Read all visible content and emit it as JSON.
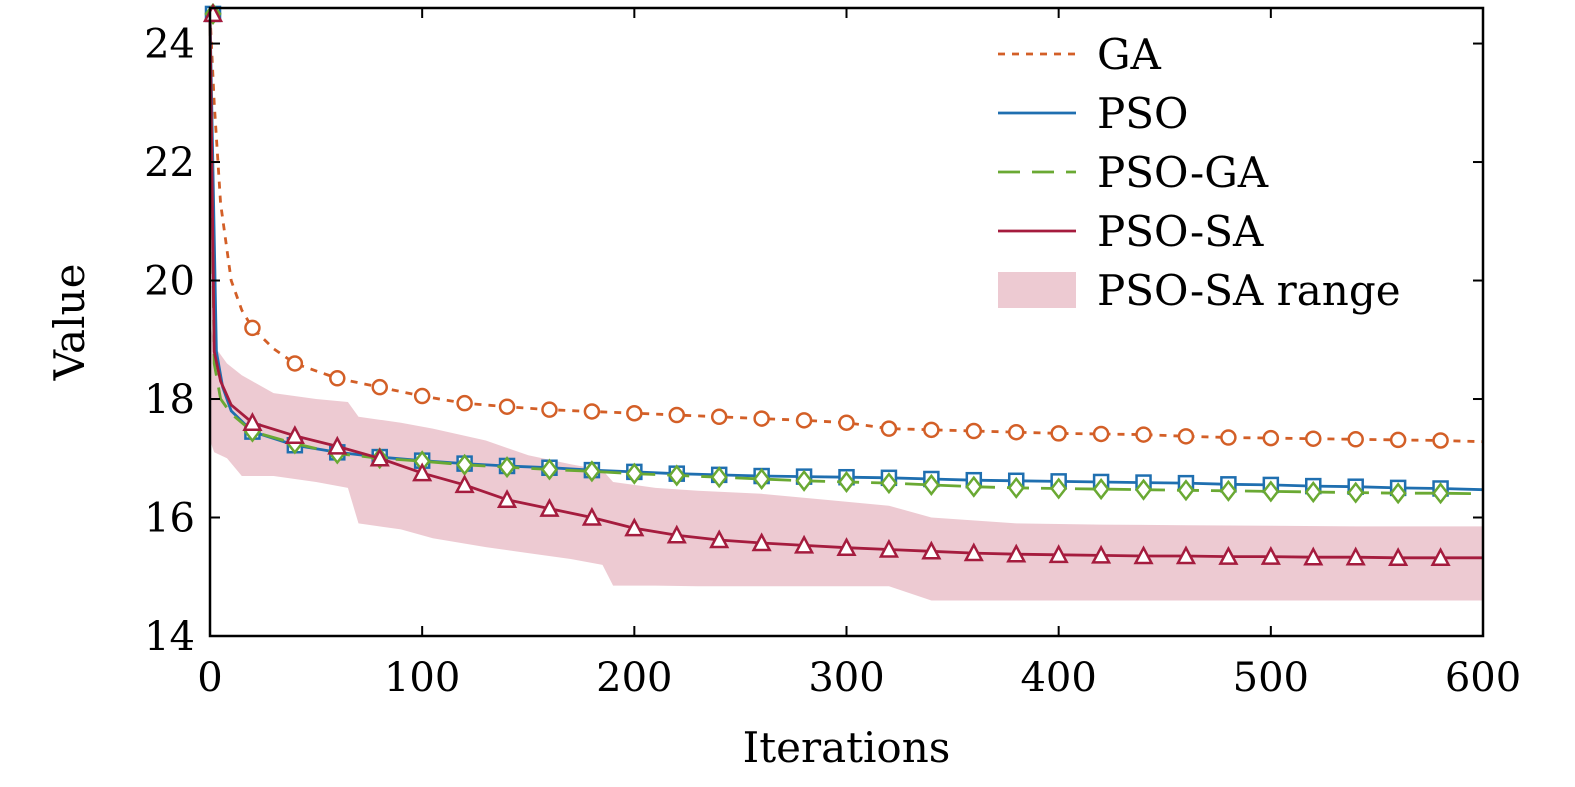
{
  "chart_data": {
    "type": "line",
    "title": "",
    "xlabel": "Iterations",
    "ylabel": "Value",
    "xlim": [
      0,
      600
    ],
    "ylim": [
      14,
      24.6
    ],
    "xticks": [
      0,
      100,
      200,
      300,
      400,
      500,
      600
    ],
    "yticks": [
      14,
      16,
      18,
      20,
      22,
      24
    ],
    "grid": false,
    "legend_position": "top-right",
    "series": [
      {
        "name": "GA",
        "color": "#d35f27",
        "line_style": "dotted",
        "marker": "circle",
        "x": [
          0,
          2,
          5,
          10,
          15,
          20,
          30,
          40,
          60,
          80,
          100,
          120,
          140,
          160,
          180,
          200,
          220,
          240,
          260,
          280,
          300,
          320,
          340,
          360,
          380,
          400,
          420,
          440,
          460,
          480,
          500,
          520,
          540,
          560,
          580,
          600
        ],
        "y": [
          24.5,
          23.0,
          21.3,
          20.0,
          19.5,
          19.2,
          18.85,
          18.6,
          18.35,
          18.2,
          18.05,
          17.93,
          17.87,
          17.82,
          17.79,
          17.76,
          17.73,
          17.7,
          17.67,
          17.64,
          17.6,
          17.5,
          17.48,
          17.46,
          17.44,
          17.42,
          17.41,
          17.4,
          17.37,
          17.35,
          17.34,
          17.33,
          17.32,
          17.31,
          17.3,
          17.28
        ]
      },
      {
        "name": "PSO",
        "color": "#1f6fb0",
        "line_style": "solid",
        "marker": "square",
        "x": [
          0,
          3,
          6,
          10,
          20,
          40,
          60,
          80,
          100,
          120,
          140,
          160,
          180,
          200,
          220,
          240,
          260,
          280,
          300,
          320,
          340,
          360,
          380,
          400,
          420,
          440,
          460,
          480,
          500,
          520,
          540,
          560,
          580,
          600
        ],
        "y": [
          24.5,
          18.8,
          18.2,
          17.8,
          17.45,
          17.22,
          17.1,
          17.02,
          16.96,
          16.91,
          16.87,
          16.84,
          16.8,
          16.77,
          16.74,
          16.72,
          16.7,
          16.69,
          16.68,
          16.67,
          16.65,
          16.63,
          16.62,
          16.61,
          16.6,
          16.59,
          16.58,
          16.56,
          16.55,
          16.53,
          16.52,
          16.5,
          16.49,
          16.47
        ]
      },
      {
        "name": "PSO-GA",
        "color": "#6aa933",
        "line_style": "dashed",
        "marker": "diamond",
        "x": [
          0,
          2,
          5,
          10,
          20,
          40,
          60,
          80,
          100,
          120,
          140,
          160,
          180,
          200,
          220,
          240,
          260,
          280,
          300,
          320,
          340,
          360,
          380,
          400,
          420,
          440,
          460,
          480,
          500,
          520,
          540,
          560,
          580,
          600
        ],
        "y": [
          24.5,
          18.6,
          18.0,
          17.75,
          17.45,
          17.25,
          17.08,
          17.0,
          16.95,
          16.89,
          16.85,
          16.81,
          16.78,
          16.74,
          16.71,
          16.68,
          16.65,
          16.62,
          16.6,
          16.58,
          16.55,
          16.52,
          16.5,
          16.49,
          16.48,
          16.47,
          16.46,
          16.45,
          16.44,
          16.43,
          16.42,
          16.41,
          16.41,
          16.4
        ]
      },
      {
        "name": "PSO-SA",
        "color": "#a51c3e",
        "line_style": "solid",
        "marker": "triangle",
        "x": [
          0,
          2,
          5,
          10,
          20,
          40,
          60,
          80,
          100,
          120,
          140,
          160,
          180,
          200,
          220,
          240,
          260,
          280,
          300,
          320,
          340,
          360,
          380,
          400,
          420,
          440,
          460,
          480,
          500,
          520,
          540,
          560,
          580,
          600
        ],
        "y": [
          24.5,
          18.8,
          18.3,
          17.9,
          17.6,
          17.38,
          17.2,
          17.0,
          16.75,
          16.55,
          16.3,
          16.15,
          16.0,
          15.82,
          15.7,
          15.62,
          15.57,
          15.53,
          15.49,
          15.46,
          15.43,
          15.4,
          15.38,
          15.37,
          15.36,
          15.35,
          15.35,
          15.34,
          15.34,
          15.33,
          15.33,
          15.32,
          15.32,
          15.32
        ]
      }
    ],
    "band": {
      "name": "PSO-SA range",
      "color": "#e6b3bf",
      "x": [
        0,
        2,
        8,
        15,
        30,
        50,
        65,
        70,
        90,
        105,
        130,
        150,
        170,
        185,
        190,
        210,
        230,
        260,
        290,
        320,
        340,
        380,
        420,
        460,
        500,
        540,
        580,
        600
      ],
      "upper": [
        19.3,
        18.9,
        18.6,
        18.4,
        18.1,
        18.0,
        17.95,
        17.7,
        17.6,
        17.5,
        17.3,
        17.05,
        16.9,
        16.8,
        16.6,
        16.5,
        16.45,
        16.4,
        16.3,
        16.2,
        16.0,
        15.9,
        15.88,
        15.87,
        15.86,
        15.85,
        15.85,
        15.85
      ],
      "lower": [
        17.3,
        17.1,
        17.0,
        16.7,
        16.7,
        16.6,
        16.5,
        15.9,
        15.8,
        15.65,
        15.5,
        15.4,
        15.3,
        15.2,
        14.85,
        14.85,
        14.84,
        14.84,
        14.84,
        14.84,
        14.6,
        14.6,
        14.6,
        14.6,
        14.6,
        14.6,
        14.6,
        14.6
      ]
    }
  }
}
